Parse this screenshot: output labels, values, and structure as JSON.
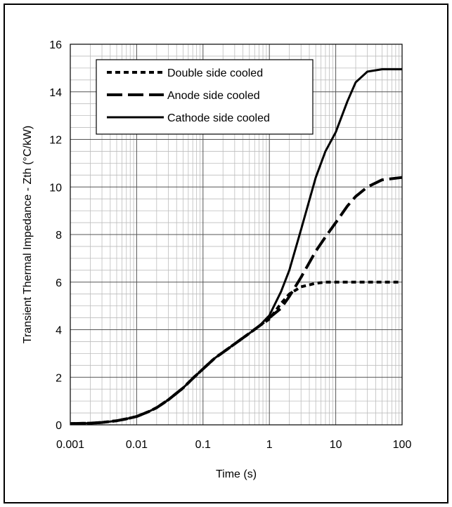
{
  "chart_data": {
    "type": "line",
    "title": "",
    "xlabel": "Time (s)",
    "ylabel": "Transient Thermal Impedance - Zth (°C/kW)",
    "xscale": "log",
    "xlim": [
      0.001,
      100
    ],
    "ylim": [
      0,
      16
    ],
    "x_ticks": [
      "0.001",
      "0.01",
      "0.1",
      "1",
      "10",
      "100"
    ],
    "y_ticks": [
      "0",
      "2",
      "4",
      "6",
      "8",
      "10",
      "12",
      "14",
      "16"
    ],
    "grid": true,
    "legend_position": "top-left",
    "series": [
      {
        "name": "Double side cooled",
        "style": "dotted",
        "x": [
          0.001,
          0.002,
          0.003,
          0.005,
          0.007,
          0.01,
          0.015,
          0.02,
          0.03,
          0.05,
          0.07,
          0.1,
          0.15,
          0.2,
          0.3,
          0.5,
          0.7,
          1.0,
          1.5,
          2.0,
          3.0,
          5.0,
          7.0,
          10.0,
          20.0,
          50.0,
          100.0
        ],
        "y": [
          0.05,
          0.07,
          0.1,
          0.17,
          0.25,
          0.35,
          0.55,
          0.72,
          1.05,
          1.55,
          1.95,
          2.35,
          2.8,
          3.05,
          3.4,
          3.85,
          4.15,
          4.45,
          5.1,
          5.5,
          5.8,
          5.95,
          6.0,
          6.0,
          6.0,
          6.0,
          6.0
        ]
      },
      {
        "name": "Anode side cooled",
        "style": "dashed",
        "x": [
          0.001,
          0.002,
          0.003,
          0.005,
          0.007,
          0.01,
          0.015,
          0.02,
          0.03,
          0.05,
          0.07,
          0.1,
          0.15,
          0.2,
          0.3,
          0.5,
          0.7,
          1.0,
          1.5,
          2.0,
          3.0,
          5.0,
          7.0,
          10.0,
          15.0,
          20.0,
          30.0,
          50.0,
          100.0
        ],
        "y": [
          0.05,
          0.07,
          0.1,
          0.17,
          0.25,
          0.35,
          0.55,
          0.72,
          1.05,
          1.55,
          1.95,
          2.35,
          2.8,
          3.05,
          3.4,
          3.85,
          4.15,
          4.5,
          4.9,
          5.4,
          6.2,
          7.3,
          7.9,
          8.5,
          9.2,
          9.6,
          10.0,
          10.3,
          10.4
        ]
      },
      {
        "name": "Cathode side cooled",
        "style": "solid",
        "x": [
          0.001,
          0.002,
          0.003,
          0.005,
          0.007,
          0.01,
          0.015,
          0.02,
          0.03,
          0.05,
          0.07,
          0.1,
          0.15,
          0.2,
          0.3,
          0.5,
          0.7,
          1.0,
          1.5,
          2.0,
          3.0,
          5.0,
          7.0,
          10.0,
          15.0,
          20.0,
          30.0,
          50.0,
          100.0
        ],
        "y": [
          0.05,
          0.07,
          0.1,
          0.17,
          0.25,
          0.35,
          0.55,
          0.72,
          1.05,
          1.55,
          1.95,
          2.35,
          2.8,
          3.05,
          3.4,
          3.85,
          4.15,
          4.6,
          5.6,
          6.5,
          8.2,
          10.4,
          11.5,
          12.3,
          13.6,
          14.4,
          14.85,
          14.95,
          14.95
        ]
      }
    ]
  }
}
